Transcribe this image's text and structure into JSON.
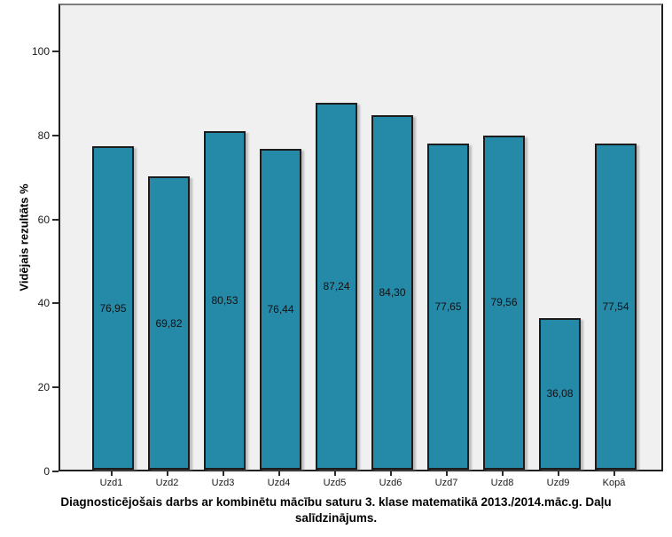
{
  "chart_data": {
    "type": "bar",
    "title": "Diagnosticējošais darbs ar kombinētu mācību saturu 3. klase matematikā 2013./2014.māc.g. Daļu salīdzinājums.",
    "ylabel": "Vidējais rezultāts %",
    "xlabel": "",
    "categories": [
      "Uzd1",
      "Uzd2",
      "Uzd3",
      "Uzd4",
      "Uzd5",
      "Uzd6",
      "Uzd7",
      "Uzd8",
      "Uzd9",
      "Kopā"
    ],
    "values": [
      76.95,
      69.82,
      80.53,
      76.44,
      87.24,
      84.3,
      77.65,
      79.56,
      36.08,
      77.54
    ],
    "value_labels": [
      "76,95",
      "69,82",
      "80,53",
      "76,44",
      "87,24",
      "84,30",
      "77,65",
      "79,56",
      "36,08",
      "77,54"
    ],
    "yticks": [
      0,
      20,
      40,
      60,
      80,
      100
    ],
    "ylim": [
      0,
      110.5
    ],
    "grid": false,
    "legend_position": "none",
    "bar_color": "#2589a8",
    "bar_border_color": "#1c1c1c",
    "plot_bg_color": "#f0f0f0"
  }
}
